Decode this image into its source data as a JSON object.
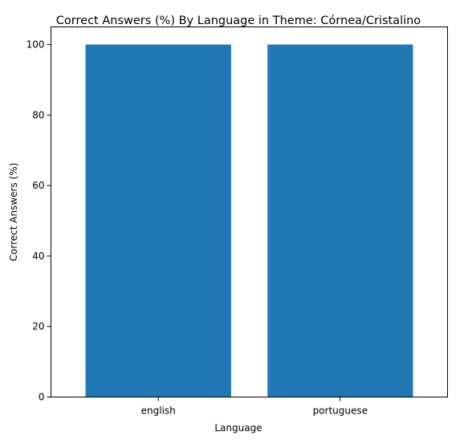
{
  "chart_data": {
    "type": "bar",
    "title": "Correct Answers (%) By Language in Theme: Córnea/Cristalino",
    "xlabel": "Language",
    "ylabel": "Correct Answers (%)",
    "categories": [
      "english",
      "portuguese"
    ],
    "values": [
      100,
      100
    ],
    "ylim": [
      0,
      105
    ],
    "yticks": [
      0,
      20,
      40,
      60,
      80,
      100
    ],
    "grid": false,
    "bar_color": "#1f77b4"
  }
}
